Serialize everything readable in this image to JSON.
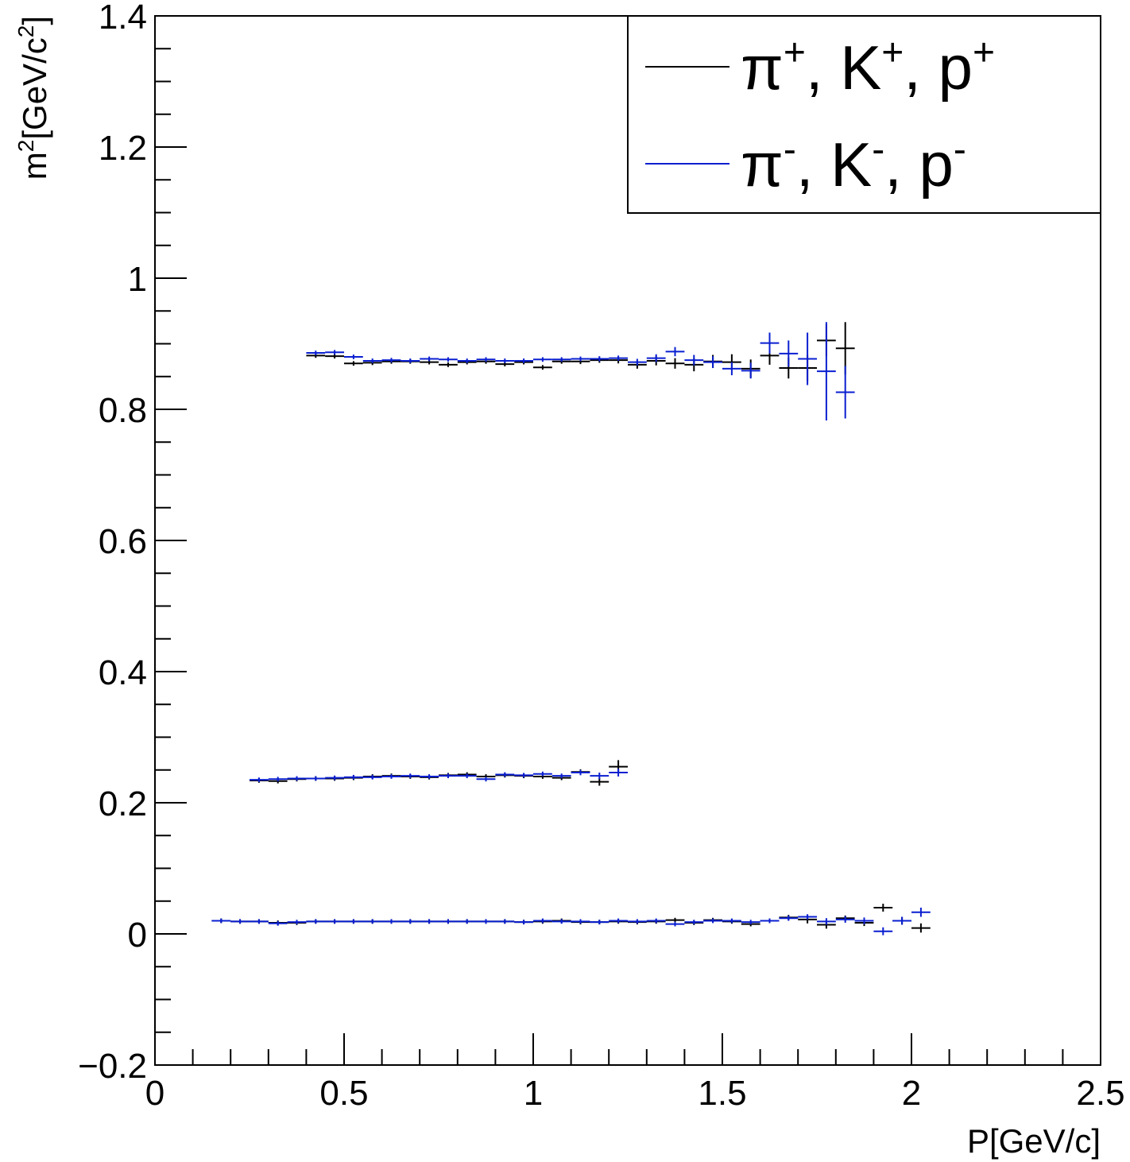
{
  "chart_data": {
    "type": "scatter",
    "xlabel": "P[GeV/c]",
    "ylabel_base": "m",
    "ylabel_sup": "2",
    "ylabel_mid": "[GeV/c",
    "ylabel_sup2": "2",
    "ylabel_end": "]",
    "xlim": [
      0,
      2.5
    ],
    "ylim": [
      -0.2,
      1.4
    ],
    "x_ticks": [
      0,
      0.5,
      1,
      1.5,
      2,
      2.5
    ],
    "x_tick_labels": [
      "0",
      "0.5",
      "1",
      "1.5",
      "2",
      "2.5"
    ],
    "y_ticks": [
      -0.2,
      0,
      0.2,
      0.4,
      0.6,
      0.8,
      1.0,
      1.2,
      1.4
    ],
    "y_tick_labels": [
      "−0.2",
      "0",
      "0.2",
      "0.4",
      "0.6",
      "0.8",
      "1",
      "1.2",
      "1.4"
    ],
    "grid": false,
    "legend_position": "top-right",
    "bin_half_width": 0.025,
    "series": [
      {
        "name": "π+, K+, p+",
        "legend_label": {
          "a": "π",
          "sa": "+",
          "b": ", K",
          "sb": "+",
          "c": ", p",
          "sc": "+"
        },
        "color": "#000000",
        "points": [
          {
            "x": 0.175,
            "y": 0.02,
            "e": 0.001
          },
          {
            "x": 0.225,
            "y": 0.019,
            "e": 0.001
          },
          {
            "x": 0.275,
            "y": 0.019,
            "e": 0.001
          },
          {
            "x": 0.325,
            "y": 0.017,
            "e": 0.001
          },
          {
            "x": 0.375,
            "y": 0.017,
            "e": 0.003
          },
          {
            "x": 0.425,
            "y": 0.019,
            "e": 0.001
          },
          {
            "x": 0.475,
            "y": 0.019,
            "e": 0.001
          },
          {
            "x": 0.525,
            "y": 0.019,
            "e": 0.001
          },
          {
            "x": 0.575,
            "y": 0.019,
            "e": 0.001
          },
          {
            "x": 0.625,
            "y": 0.019,
            "e": 0.001
          },
          {
            "x": 0.675,
            "y": 0.019,
            "e": 0.001
          },
          {
            "x": 0.725,
            "y": 0.019,
            "e": 0.001
          },
          {
            "x": 0.775,
            "y": 0.019,
            "e": 0.001
          },
          {
            "x": 0.825,
            "y": 0.019,
            "e": 0.001
          },
          {
            "x": 0.875,
            "y": 0.019,
            "e": 0.001
          },
          {
            "x": 0.925,
            "y": 0.019,
            "e": 0.001
          },
          {
            "x": 0.975,
            "y": 0.018,
            "e": 0.001
          },
          {
            "x": 1.025,
            "y": 0.019,
            "e": 0.001
          },
          {
            "x": 1.075,
            "y": 0.02,
            "e": 0.002
          },
          {
            "x": 1.125,
            "y": 0.018,
            "e": 0.002
          },
          {
            "x": 1.175,
            "y": 0.018,
            "e": 0.002
          },
          {
            "x": 1.225,
            "y": 0.019,
            "e": 0.002
          },
          {
            "x": 1.275,
            "y": 0.018,
            "e": 0.002
          },
          {
            "x": 1.325,
            "y": 0.019,
            "e": 0.002
          },
          {
            "x": 1.375,
            "y": 0.021,
            "e": 0.003
          },
          {
            "x": 1.425,
            "y": 0.017,
            "e": 0.003
          },
          {
            "x": 1.475,
            "y": 0.021,
            "e": 0.003
          },
          {
            "x": 1.525,
            "y": 0.019,
            "e": 0.003
          },
          {
            "x": 1.575,
            "y": 0.015,
            "e": 0.003
          },
          {
            "x": 1.625,
            "y": 0.02,
            "e": 0.003
          },
          {
            "x": 1.675,
            "y": 0.025,
            "e": 0.004
          },
          {
            "x": 1.725,
            "y": 0.022,
            "e": 0.006
          },
          {
            "x": 1.775,
            "y": 0.014,
            "e": 0.006
          },
          {
            "x": 1.825,
            "y": 0.024,
            "e": 0.004
          },
          {
            "x": 1.875,
            "y": 0.017,
            "e": 0.005
          },
          {
            "x": 1.925,
            "y": 0.04,
            "e": 0.006
          },
          {
            "x": 1.975,
            "y": 0.02,
            "e": 0.006
          },
          {
            "x": 2.025,
            "y": 0.009,
            "e": 0.007
          },
          {
            "x": 0.275,
            "y": 0.234,
            "e": 0.002
          },
          {
            "x": 0.325,
            "y": 0.233,
            "e": 0.002
          },
          {
            "x": 0.375,
            "y": 0.236,
            "e": 0.002
          },
          {
            "x": 0.425,
            "y": 0.237,
            "e": 0.001
          },
          {
            "x": 0.475,
            "y": 0.237,
            "e": 0.001
          },
          {
            "x": 0.525,
            "y": 0.238,
            "e": 0.001
          },
          {
            "x": 0.575,
            "y": 0.24,
            "e": 0.001
          },
          {
            "x": 0.625,
            "y": 0.241,
            "e": 0.001
          },
          {
            "x": 0.675,
            "y": 0.24,
            "e": 0.001
          },
          {
            "x": 0.725,
            "y": 0.239,
            "e": 0.001
          },
          {
            "x": 0.775,
            "y": 0.242,
            "e": 0.001
          },
          {
            "x": 0.825,
            "y": 0.243,
            "e": 0.002
          },
          {
            "x": 0.875,
            "y": 0.24,
            "e": 0.002
          },
          {
            "x": 0.925,
            "y": 0.242,
            "e": 0.002
          },
          {
            "x": 0.975,
            "y": 0.241,
            "e": 0.002
          },
          {
            "x": 1.025,
            "y": 0.24,
            "e": 0.003
          },
          {
            "x": 1.075,
            "y": 0.238,
            "e": 0.003
          },
          {
            "x": 1.125,
            "y": 0.247,
            "e": 0.004
          },
          {
            "x": 1.175,
            "y": 0.232,
            "e": 0.006
          },
          {
            "x": 1.225,
            "y": 0.255,
            "e": 0.01
          },
          {
            "x": 0.425,
            "y": 0.882,
            "e": 0.003
          },
          {
            "x": 0.475,
            "y": 0.881,
            "e": 0.002
          },
          {
            "x": 0.525,
            "y": 0.87,
            "e": 0.002
          },
          {
            "x": 0.575,
            "y": 0.871,
            "e": 0.002
          },
          {
            "x": 0.625,
            "y": 0.873,
            "e": 0.002
          },
          {
            "x": 0.675,
            "y": 0.873,
            "e": 0.002
          },
          {
            "x": 0.725,
            "y": 0.872,
            "e": 0.002
          },
          {
            "x": 0.775,
            "y": 0.868,
            "e": 0.002
          },
          {
            "x": 0.825,
            "y": 0.872,
            "e": 0.002
          },
          {
            "x": 0.875,
            "y": 0.873,
            "e": 0.002
          },
          {
            "x": 0.925,
            "y": 0.869,
            "e": 0.002
          },
          {
            "x": 0.975,
            "y": 0.872,
            "e": 0.002
          },
          {
            "x": 1.025,
            "y": 0.864,
            "e": 0.003
          },
          {
            "x": 1.075,
            "y": 0.873,
            "e": 0.003
          },
          {
            "x": 1.125,
            "y": 0.873,
            "e": 0.004
          },
          {
            "x": 1.175,
            "y": 0.875,
            "e": 0.004
          },
          {
            "x": 1.225,
            "y": 0.875,
            "e": 0.005
          },
          {
            "x": 1.275,
            "y": 0.868,
            "e": 0.006
          },
          {
            "x": 1.325,
            "y": 0.874,
            "e": 0.007
          },
          {
            "x": 1.375,
            "y": 0.87,
            "e": 0.008
          },
          {
            "x": 1.425,
            "y": 0.868,
            "e": 0.01
          },
          {
            "x": 1.475,
            "y": 0.873,
            "e": 0.01
          },
          {
            "x": 1.525,
            "y": 0.872,
            "e": 0.012
          },
          {
            "x": 1.575,
            "y": 0.862,
            "e": 0.014
          },
          {
            "x": 1.625,
            "y": 0.882,
            "e": 0.014
          },
          {
            "x": 1.675,
            "y": 0.863,
            "e": 0.016
          },
          {
            "x": 1.725,
            "y": 0.863,
            "e": 0.02
          },
          {
            "x": 1.775,
            "y": 0.905,
            "e": 0.024
          },
          {
            "x": 1.825,
            "y": 0.893,
            "e": 0.04
          }
        ]
      },
      {
        "name": "π-, K-, p-",
        "legend_label": {
          "a": "π",
          "sa": "-",
          "b": ", K",
          "sb": "-",
          "c": ", p",
          "sc": "-"
        },
        "color": "#0a1fd0",
        "points": [
          {
            "x": 0.175,
            "y": 0.02,
            "e": 0.001
          },
          {
            "x": 0.225,
            "y": 0.019,
            "e": 0.001
          },
          {
            "x": 0.275,
            "y": 0.019,
            "e": 0.001
          },
          {
            "x": 0.325,
            "y": 0.016,
            "e": 0.001
          },
          {
            "x": 0.375,
            "y": 0.018,
            "e": 0.001
          },
          {
            "x": 0.425,
            "y": 0.019,
            "e": 0.001
          },
          {
            "x": 0.475,
            "y": 0.019,
            "e": 0.001
          },
          {
            "x": 0.525,
            "y": 0.019,
            "e": 0.001
          },
          {
            "x": 0.575,
            "y": 0.019,
            "e": 0.001
          },
          {
            "x": 0.625,
            "y": 0.019,
            "e": 0.001
          },
          {
            "x": 0.675,
            "y": 0.019,
            "e": 0.001
          },
          {
            "x": 0.725,
            "y": 0.019,
            "e": 0.001
          },
          {
            "x": 0.775,
            "y": 0.019,
            "e": 0.001
          },
          {
            "x": 0.825,
            "y": 0.019,
            "e": 0.001
          },
          {
            "x": 0.875,
            "y": 0.019,
            "e": 0.001
          },
          {
            "x": 0.925,
            "y": 0.019,
            "e": 0.001
          },
          {
            "x": 0.975,
            "y": 0.018,
            "e": 0.001
          },
          {
            "x": 1.025,
            "y": 0.02,
            "e": 0.001
          },
          {
            "x": 1.075,
            "y": 0.019,
            "e": 0.002
          },
          {
            "x": 1.125,
            "y": 0.019,
            "e": 0.002
          },
          {
            "x": 1.175,
            "y": 0.018,
            "e": 0.002
          },
          {
            "x": 1.225,
            "y": 0.02,
            "e": 0.002
          },
          {
            "x": 1.275,
            "y": 0.019,
            "e": 0.002
          },
          {
            "x": 1.325,
            "y": 0.02,
            "e": 0.002
          },
          {
            "x": 1.375,
            "y": 0.015,
            "e": 0.003
          },
          {
            "x": 1.425,
            "y": 0.018,
            "e": 0.003
          },
          {
            "x": 1.475,
            "y": 0.02,
            "e": 0.003
          },
          {
            "x": 1.525,
            "y": 0.02,
            "e": 0.003
          },
          {
            "x": 1.575,
            "y": 0.018,
            "e": 0.003
          },
          {
            "x": 1.625,
            "y": 0.02,
            "e": 0.003
          },
          {
            "x": 1.675,
            "y": 0.024,
            "e": 0.004
          },
          {
            "x": 1.725,
            "y": 0.026,
            "e": 0.004
          },
          {
            "x": 1.775,
            "y": 0.019,
            "e": 0.005
          },
          {
            "x": 1.825,
            "y": 0.022,
            "e": 0.005
          },
          {
            "x": 1.875,
            "y": 0.02,
            "e": 0.005
          },
          {
            "x": 1.925,
            "y": 0.004,
            "e": 0.006
          },
          {
            "x": 1.975,
            "y": 0.02,
            "e": 0.006
          },
          {
            "x": 2.025,
            "y": 0.033,
            "e": 0.007
          },
          {
            "x": 0.275,
            "y": 0.235,
            "e": 0.002
          },
          {
            "x": 0.325,
            "y": 0.236,
            "e": 0.002
          },
          {
            "x": 0.375,
            "y": 0.237,
            "e": 0.002
          },
          {
            "x": 0.425,
            "y": 0.237,
            "e": 0.001
          },
          {
            "x": 0.475,
            "y": 0.238,
            "e": 0.001
          },
          {
            "x": 0.525,
            "y": 0.239,
            "e": 0.001
          },
          {
            "x": 0.575,
            "y": 0.239,
            "e": 0.001
          },
          {
            "x": 0.625,
            "y": 0.24,
            "e": 0.001
          },
          {
            "x": 0.675,
            "y": 0.241,
            "e": 0.001
          },
          {
            "x": 0.725,
            "y": 0.24,
            "e": 0.001
          },
          {
            "x": 0.775,
            "y": 0.241,
            "e": 0.001
          },
          {
            "x": 0.825,
            "y": 0.241,
            "e": 0.002
          },
          {
            "x": 0.875,
            "y": 0.236,
            "e": 0.002
          },
          {
            "x": 0.925,
            "y": 0.243,
            "e": 0.002
          },
          {
            "x": 0.975,
            "y": 0.242,
            "e": 0.002
          },
          {
            "x": 1.025,
            "y": 0.244,
            "e": 0.003
          },
          {
            "x": 1.075,
            "y": 0.241,
            "e": 0.003
          },
          {
            "x": 1.125,
            "y": 0.246,
            "e": 0.004
          },
          {
            "x": 1.175,
            "y": 0.241,
            "e": 0.005
          },
          {
            "x": 1.225,
            "y": 0.246,
            "e": 0.006
          },
          {
            "x": 0.425,
            "y": 0.886,
            "e": 0.003
          },
          {
            "x": 0.475,
            "y": 0.887,
            "e": 0.002
          },
          {
            "x": 0.525,
            "y": 0.88,
            "e": 0.002
          },
          {
            "x": 0.575,
            "y": 0.874,
            "e": 0.002
          },
          {
            "x": 0.625,
            "y": 0.875,
            "e": 0.002
          },
          {
            "x": 0.675,
            "y": 0.874,
            "e": 0.002
          },
          {
            "x": 0.725,
            "y": 0.877,
            "e": 0.002
          },
          {
            "x": 0.775,
            "y": 0.876,
            "e": 0.002
          },
          {
            "x": 0.825,
            "y": 0.874,
            "e": 0.002
          },
          {
            "x": 0.875,
            "y": 0.876,
            "e": 0.002
          },
          {
            "x": 0.925,
            "y": 0.874,
            "e": 0.002
          },
          {
            "x": 0.975,
            "y": 0.874,
            "e": 0.002
          },
          {
            "x": 1.025,
            "y": 0.876,
            "e": 0.003
          },
          {
            "x": 1.075,
            "y": 0.876,
            "e": 0.003
          },
          {
            "x": 1.125,
            "y": 0.877,
            "e": 0.003
          },
          {
            "x": 1.175,
            "y": 0.877,
            "e": 0.004
          },
          {
            "x": 1.225,
            "y": 0.878,
            "e": 0.004
          },
          {
            "x": 1.275,
            "y": 0.872,
            "e": 0.005
          },
          {
            "x": 1.325,
            "y": 0.878,
            "e": 0.006
          },
          {
            "x": 1.375,
            "y": 0.888,
            "e": 0.007
          },
          {
            "x": 1.425,
            "y": 0.875,
            "e": 0.008
          },
          {
            "x": 1.475,
            "y": 0.872,
            "e": 0.009
          },
          {
            "x": 1.525,
            "y": 0.862,
            "e": 0.01
          },
          {
            "x": 1.575,
            "y": 0.859,
            "e": 0.012
          },
          {
            "x": 1.625,
            "y": 0.901,
            "e": 0.016
          },
          {
            "x": 1.675,
            "y": 0.885,
            "e": 0.02
          },
          {
            "x": 1.725,
            "y": 0.877,
            "e": 0.04
          },
          {
            "x": 1.775,
            "y": 0.858,
            "e": 0.075
          },
          {
            "x": 1.825,
            "y": 0.826,
            "e": 0.04
          }
        ]
      }
    ]
  }
}
